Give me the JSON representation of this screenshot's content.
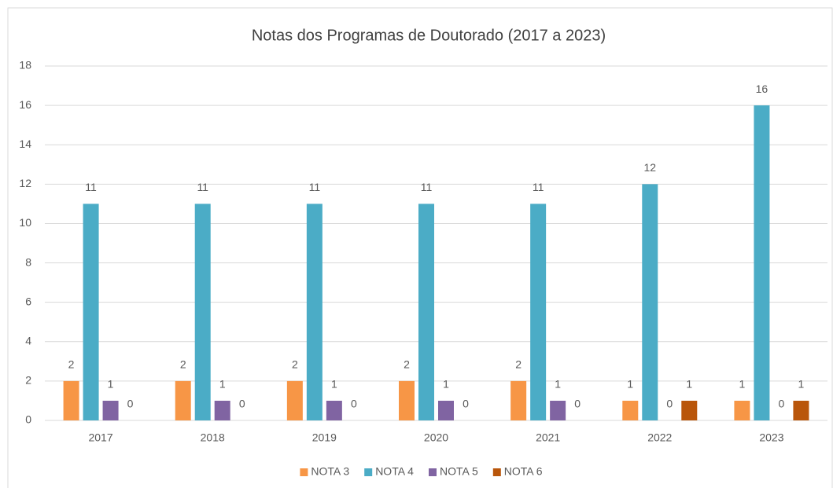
{
  "chart_data": {
    "type": "bar",
    "title": "Notas dos Programas de Doutorado (2017 a 2023)",
    "categories": [
      "2017",
      "2018",
      "2019",
      "2020",
      "2021",
      "2022",
      "2023"
    ],
    "series": [
      {
        "name": "NOTA 3",
        "color": "#f79646",
        "values": [
          2,
          2,
          2,
          2,
          2,
          1,
          1
        ]
      },
      {
        "name": "NOTA 4",
        "color": "#4bacc6",
        "values": [
          11,
          11,
          11,
          11,
          11,
          12,
          16
        ]
      },
      {
        "name": "NOTA 5",
        "color": "#8064a2",
        "values": [
          1,
          1,
          1,
          1,
          1,
          0,
          0
        ]
      },
      {
        "name": "NOTA 6",
        "color": "#b9560b",
        "values": [
          0,
          0,
          0,
          0,
          0,
          1,
          1
        ]
      }
    ],
    "ylim": [
      0,
      18
    ],
    "yticks": [
      0,
      2,
      4,
      6,
      8,
      10,
      12,
      14,
      16,
      18
    ],
    "grid": true,
    "legend": "bottom"
  }
}
